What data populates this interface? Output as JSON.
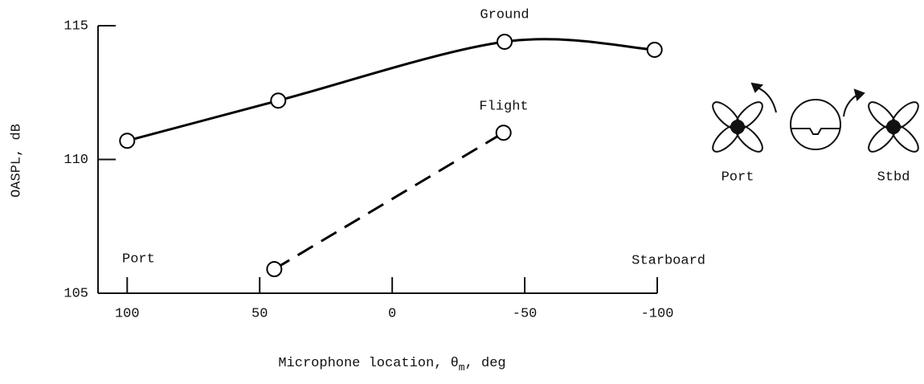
{
  "chart_data": {
    "type": "line",
    "ylabel": "OASPL, dB",
    "xlabel": {
      "text": "Microphone location, θ",
      "subscript": "m",
      "suffix": ", deg"
    },
    "xlim": [
      111,
      -100
    ],
    "xticks": [
      100,
      50,
      0,
      -50,
      -100
    ],
    "ylim": [
      105,
      115
    ],
    "yticks": [
      105,
      110,
      115
    ],
    "series": [
      {
        "name": "Ground",
        "color": "#000000",
        "dashed": false,
        "x": [
          100,
          43,
          -42.4,
          -99
        ],
        "values": [
          110.7,
          112.2,
          114.4,
          114.1
        ]
      },
      {
        "name": "Flight",
        "color": "#000000",
        "dashed": true,
        "x": [
          44.5,
          -42
        ],
        "values": [
          105.9,
          111.0
        ]
      }
    ],
    "annotations": [
      "Port",
      "Starboard"
    ],
    "diagram": {
      "port": "Port",
      "starboard": "Stbd"
    }
  }
}
